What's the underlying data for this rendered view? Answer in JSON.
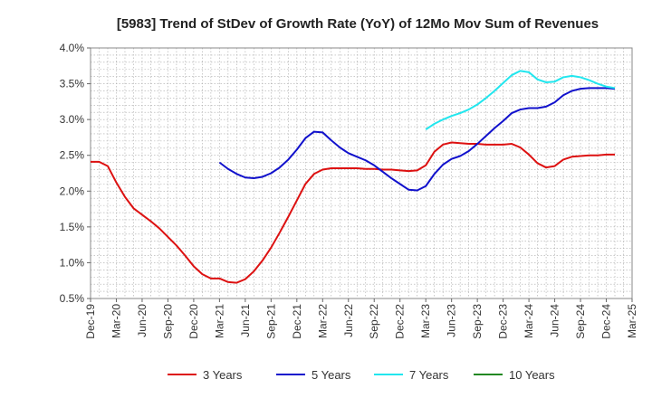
{
  "chart_data": {
    "type": "line",
    "title": "[5983]  Trend of StDev of Growth Rate (YoY) of 12Mo Mov Sum of Revenues",
    "xlabel": "",
    "ylabel": "",
    "ylim": [
      0.5,
      4.0
    ],
    "y_ticks": [
      "0.5%",
      "1.0%",
      "1.5%",
      "2.0%",
      "2.5%",
      "3.0%",
      "3.5%",
      "4.0%"
    ],
    "y_tick_values": [
      0.5,
      1.0,
      1.5,
      2.0,
      2.5,
      3.0,
      3.5,
      4.0
    ],
    "x_tick_labels": [
      "Dec-19",
      "Mar-20",
      "Jun-20",
      "Sep-20",
      "Dec-20",
      "Mar-21",
      "Jun-21",
      "Sep-21",
      "Dec-21",
      "Mar-22",
      "Jun-22",
      "Sep-22",
      "Dec-22",
      "Mar-23",
      "Jun-23",
      "Sep-23",
      "Dec-23",
      "Mar-24",
      "Jun-24",
      "Sep-24",
      "Dec-24",
      "Mar-25"
    ],
    "x_start_label": "Dec-19",
    "x_months_total": 63,
    "grid": true,
    "legend_position": "bottom",
    "series": [
      {
        "name": "3 Years",
        "color": "#dd1111",
        "start_month": 0,
        "values": [
          2.41,
          2.41,
          2.35,
          2.12,
          1.92,
          1.76,
          1.67,
          1.58,
          1.48,
          1.36,
          1.24,
          1.1,
          0.95,
          0.84,
          0.78,
          0.78,
          0.73,
          0.72,
          0.77,
          0.88,
          1.03,
          1.21,
          1.42,
          1.64,
          1.87,
          2.1,
          2.24,
          2.3,
          2.32,
          2.32,
          2.32,
          2.32,
          2.31,
          2.31,
          2.3,
          2.3,
          2.29,
          2.28,
          2.29,
          2.36,
          2.55,
          2.65,
          2.68,
          2.67,
          2.66,
          2.66,
          2.65,
          2.65,
          2.65,
          2.66,
          2.61,
          2.51,
          2.39,
          2.33,
          2.35,
          2.44,
          2.48,
          2.49,
          2.5,
          2.5,
          2.51,
          2.51
        ]
      },
      {
        "name": "5 Years",
        "color": "#1111cc",
        "start_month": 15,
        "values": [
          2.4,
          2.31,
          2.24,
          2.19,
          2.18,
          2.2,
          2.25,
          2.33,
          2.44,
          2.58,
          2.74,
          2.83,
          2.82,
          2.71,
          2.61,
          2.53,
          2.48,
          2.43,
          2.36,
          2.27,
          2.18,
          2.1,
          2.02,
          2.01,
          2.07,
          2.24,
          2.37,
          2.45,
          2.49,
          2.56,
          2.66,
          2.77,
          2.88,
          2.98,
          3.09,
          3.14,
          3.16,
          3.16,
          3.18,
          3.24,
          3.34,
          3.4,
          3.43,
          3.44,
          3.44,
          3.44,
          3.43
        ]
      },
      {
        "name": "7 Years",
        "color": "#22e6ee",
        "start_month": 39,
        "values": [
          2.86,
          2.94,
          3.0,
          3.05,
          3.09,
          3.14,
          3.21,
          3.3,
          3.4,
          3.51,
          3.62,
          3.68,
          3.66,
          3.56,
          3.52,
          3.53,
          3.59,
          3.61,
          3.59,
          3.55,
          3.5,
          3.46,
          3.44
        ]
      },
      {
        "name": "10 Years",
        "color": "#228822",
        "start_month": 0,
        "values": []
      }
    ]
  }
}
